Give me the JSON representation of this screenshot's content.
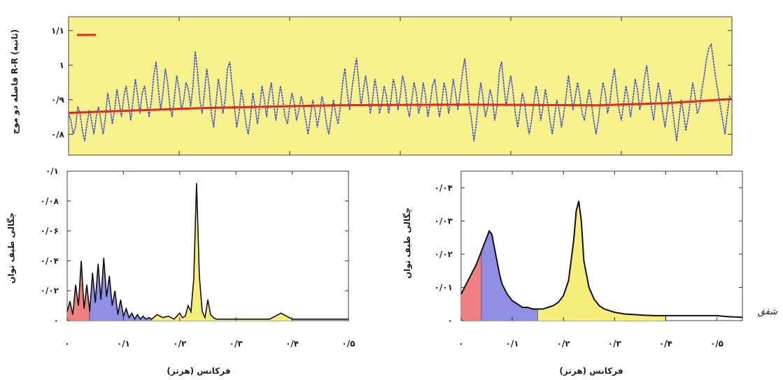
{
  "chart_data": [
    {
      "type": "line",
      "panel": "top",
      "ylabel": "فاصله دو موج R-R (ثانیه)",
      "yticks": [
        {
          "v": 0.8,
          "label": "۰/۸"
        },
        {
          "v": 0.9,
          "label": "۰/۹"
        },
        {
          "v": 1.0,
          "label": "۱"
        },
        {
          "v": 1.1,
          "label": "۱/۱"
        }
      ],
      "ylim": [
        0.74,
        1.14
      ],
      "xlim": [
        0,
        300
      ],
      "background": "#f7f28c",
      "signal_color": "#3b4fd0",
      "trend_color": "#e8261e",
      "trend": {
        "x": [
          0,
          60,
          120,
          180,
          240,
          270,
          300
        ],
        "y": [
          0.862,
          0.876,
          0.884,
          0.886,
          0.884,
          0.89,
          0.902
        ]
      },
      "series": [
        {
          "values": [
            0.86,
            0.84,
            0.8,
            0.82,
            0.88,
            0.86,
            0.81,
            0.78,
            0.83,
            0.87,
            0.84,
            0.8,
            0.85,
            0.88,
            0.84,
            0.8,
            0.85,
            0.92,
            0.88,
            0.83,
            0.87,
            0.93,
            0.89,
            0.85,
            0.91,
            0.94,
            0.89,
            0.84,
            0.9,
            0.96,
            0.91,
            0.86,
            0.92,
            0.94,
            0.89,
            0.85,
            0.9,
            0.97,
            1.01,
            0.93,
            0.87,
            0.92,
            0.99,
            0.95,
            0.88,
            0.85,
            0.91,
            0.97,
            0.93,
            0.87,
            0.9,
            0.95,
            0.93,
            0.88,
            0.94,
            1.04,
            0.98,
            0.9,
            0.86,
            0.92,
            0.99,
            0.94,
            0.86,
            0.82,
            0.89,
            0.96,
            0.92,
            0.86,
            0.9,
            0.99,
            1.01,
            0.94,
            0.88,
            0.82,
            0.86,
            0.93,
            0.89,
            0.83,
            0.8,
            0.85,
            0.92,
            0.88,
            0.83,
            0.88,
            0.94,
            0.9,
            0.85,
            0.91,
            0.95,
            0.89,
            0.84,
            0.89,
            0.94,
            0.9,
            0.85,
            0.83,
            0.88,
            0.92,
            0.89,
            0.84,
            0.87,
            0.91,
            0.88,
            0.84,
            0.8,
            0.85,
            0.9,
            0.87,
            0.82,
            0.86,
            0.91,
            0.88,
            0.83,
            0.8,
            0.85,
            0.9,
            0.86,
            0.83,
            0.88,
            0.95,
            0.99,
            0.92,
            0.87,
            0.93,
            0.98,
            1.02,
            0.95,
            0.88,
            0.93,
            0.97,
            0.92,
            0.86,
            0.9,
            0.96,
            0.92,
            0.86,
            0.89,
            0.94,
            0.91,
            0.86,
            0.9,
            0.96,
            0.93,
            0.87,
            0.91,
            0.97,
            0.94,
            0.88,
            0.85,
            0.9,
            0.95,
            0.92,
            0.86,
            0.89,
            0.95,
            0.91,
            0.85,
            0.89,
            0.94,
            0.96,
            0.9,
            0.85,
            0.89,
            0.95,
            0.92,
            0.86,
            0.9,
            0.96,
            0.92,
            0.87,
            0.92,
            0.98,
            1.02,
            0.95,
            0.88,
            0.84,
            0.78,
            0.83,
            0.9,
            0.95,
            0.9,
            0.85,
            0.88,
            0.93,
            0.9,
            0.84,
            0.88,
            0.98,
            1.01,
            0.94,
            0.88,
            0.93,
            0.97,
            0.92,
            0.86,
            0.82,
            0.87,
            0.92,
            0.89,
            0.84,
            0.8,
            0.84,
            0.89,
            0.94,
            0.9,
            0.84,
            0.88,
            0.93,
            0.89,
            0.84,
            0.8,
            0.85,
            0.9,
            0.87,
            0.82,
            0.86,
            0.91,
            0.97,
            0.92,
            0.87,
            0.91,
            0.95,
            0.91,
            0.86,
            0.84,
            0.89,
            0.93,
            0.89,
            0.84,
            0.8,
            0.84,
            0.9,
            0.95,
            0.92,
            0.86,
            0.89,
            0.95,
            0.99,
            0.93,
            0.87,
            0.84,
            0.89,
            0.94,
            0.9,
            0.85,
            0.9,
            0.96,
            0.93,
            0.87,
            0.9,
            0.96,
            1.0,
            0.94,
            0.88,
            0.84,
            0.9,
            0.95,
            0.91,
            0.86,
            0.82,
            0.87,
            0.93,
            0.89,
            0.83,
            0.78,
            0.84,
            0.9,
            0.86,
            0.81,
            0.85,
            0.9,
            0.95,
            0.91,
            0.86,
            0.88,
            0.93,
            0.97,
            1.02,
            1.05,
            1.06,
            1.01,
            0.96,
            0.92,
            0.88,
            0.84,
            0.8,
            0.86,
            0.91,
            0.9
          ]
        }
      ]
    },
    {
      "type": "area",
      "panel": "bottom-left",
      "xlabel": "فرکانس (هرتز)",
      "ylabel": "چگالی طیف توان",
      "xlim": [
        0,
        0.5
      ],
      "ylim": [
        0,
        0.1
      ],
      "xticks": [
        {
          "v": 0.0,
          "label": "۰"
        },
        {
          "v": 0.1,
          "label": "۰/۱"
        },
        {
          "v": 0.2,
          "label": "۰/۲"
        },
        {
          "v": 0.3,
          "label": "۰/۳"
        },
        {
          "v": 0.4,
          "label": "۰/۴"
        },
        {
          "v": 0.5,
          "label": "۰/۵"
        }
      ],
      "yticks": [
        {
          "v": 0.0,
          "label": "۰"
        },
        {
          "v": 0.02,
          "label": "۰/۰۲"
        },
        {
          "v": 0.04,
          "label": "۰/۰۴"
        },
        {
          "v": 0.06,
          "label": "۰/۰۶"
        },
        {
          "v": 0.08,
          "label": "۰/۰۸"
        },
        {
          "v": 0.1,
          "label": "۰/۱"
        }
      ],
      "bands": [
        {
          "from": 0.0,
          "to": 0.04,
          "color": "#f08080"
        },
        {
          "from": 0.04,
          "to": 0.15,
          "color": "#8f8fe6"
        },
        {
          "from": 0.15,
          "to": 0.4,
          "color": "#f5ef7a"
        }
      ],
      "x": [
        0.0,
        0.005,
        0.01,
        0.015,
        0.02,
        0.025,
        0.03,
        0.035,
        0.04,
        0.045,
        0.05,
        0.055,
        0.06,
        0.065,
        0.07,
        0.075,
        0.08,
        0.085,
        0.09,
        0.095,
        0.1,
        0.105,
        0.11,
        0.115,
        0.12,
        0.125,
        0.13,
        0.135,
        0.14,
        0.145,
        0.15,
        0.16,
        0.17,
        0.18,
        0.19,
        0.2,
        0.205,
        0.21,
        0.215,
        0.22,
        0.225,
        0.23,
        0.235,
        0.24,
        0.245,
        0.25,
        0.255,
        0.26,
        0.265,
        0.27,
        0.275,
        0.28,
        0.285,
        0.29,
        0.3,
        0.32,
        0.34,
        0.36,
        0.38,
        0.4,
        0.42,
        0.44,
        0.46,
        0.48,
        0.5
      ],
      "values": [
        0.006,
        0.013,
        0.004,
        0.024,
        0.01,
        0.04,
        0.008,
        0.024,
        0.006,
        0.032,
        0.012,
        0.038,
        0.014,
        0.042,
        0.016,
        0.03,
        0.01,
        0.02,
        0.004,
        0.014,
        0.003,
        0.008,
        0.002,
        0.005,
        0.001,
        0.004,
        0.001,
        0.003,
        0.001,
        0.002,
        0.001,
        0.004,
        0.002,
        0.003,
        0.001,
        0.005,
        0.002,
        0.003,
        0.01,
        0.006,
        0.028,
        0.092,
        0.03,
        0.006,
        0.002,
        0.014,
        0.004,
        0.002,
        0.001,
        0.001,
        0.001,
        0.001,
        0.001,
        0.001,
        0.001,
        0.001,
        0.001,
        0.001,
        0.005,
        0.001,
        0.001,
        0.001,
        0.001,
        0.001,
        0.001
      ]
    },
    {
      "type": "area",
      "panel": "bottom-right",
      "xlabel": "فرکانس (هرتز)",
      "ylabel": "چگالی طیف توان",
      "xlim": [
        0,
        0.55
      ],
      "ylim": [
        0,
        0.045
      ],
      "xticks": [
        {
          "v": 0.0,
          "label": "۰"
        },
        {
          "v": 0.1,
          "label": "۰/۱"
        },
        {
          "v": 0.2,
          "label": "۰/۲"
        },
        {
          "v": 0.3,
          "label": "۰/۳"
        },
        {
          "v": 0.4,
          "label": "۰/۴"
        },
        {
          "v": 0.5,
          "label": "۰/۵"
        }
      ],
      "yticks": [
        {
          "v": 0.0,
          "label": "۰"
        },
        {
          "v": 0.01,
          "label": "۰/۰۱"
        },
        {
          "v": 0.02,
          "label": "۰/۰۲"
        },
        {
          "v": 0.03,
          "label": "۰/۰۳"
        },
        {
          "v": 0.04,
          "label": "۰/۰۴"
        }
      ],
      "bands": [
        {
          "from": 0.0,
          "to": 0.04,
          "color": "#f08080"
        },
        {
          "from": 0.04,
          "to": 0.15,
          "color": "#8f8fe6"
        },
        {
          "from": 0.15,
          "to": 0.4,
          "color": "#f5ef7a"
        }
      ],
      "x": [
        0.0,
        0.01,
        0.02,
        0.03,
        0.04,
        0.05,
        0.055,
        0.06,
        0.065,
        0.07,
        0.075,
        0.08,
        0.09,
        0.1,
        0.11,
        0.12,
        0.13,
        0.14,
        0.15,
        0.16,
        0.17,
        0.18,
        0.19,
        0.2,
        0.21,
        0.22,
        0.225,
        0.23,
        0.235,
        0.24,
        0.25,
        0.26,
        0.27,
        0.28,
        0.3,
        0.32,
        0.34,
        0.36,
        0.38,
        0.4,
        0.42,
        0.45,
        0.48,
        0.5,
        0.52,
        0.55
      ],
      "values": [
        0.008,
        0.011,
        0.014,
        0.017,
        0.021,
        0.025,
        0.027,
        0.026,
        0.022,
        0.018,
        0.014,
        0.011,
        0.008,
        0.006,
        0.005,
        0.004,
        0.004,
        0.0035,
        0.0035,
        0.0035,
        0.004,
        0.0045,
        0.0055,
        0.0075,
        0.012,
        0.024,
        0.033,
        0.036,
        0.03,
        0.018,
        0.01,
        0.0065,
        0.0045,
        0.0035,
        0.0025,
        0.002,
        0.0018,
        0.0016,
        0.0015,
        0.0015,
        0.0015,
        0.0015,
        0.0015,
        0.0015,
        0.0012,
        0.001
      ]
    }
  ],
  "watermark": "شفق"
}
